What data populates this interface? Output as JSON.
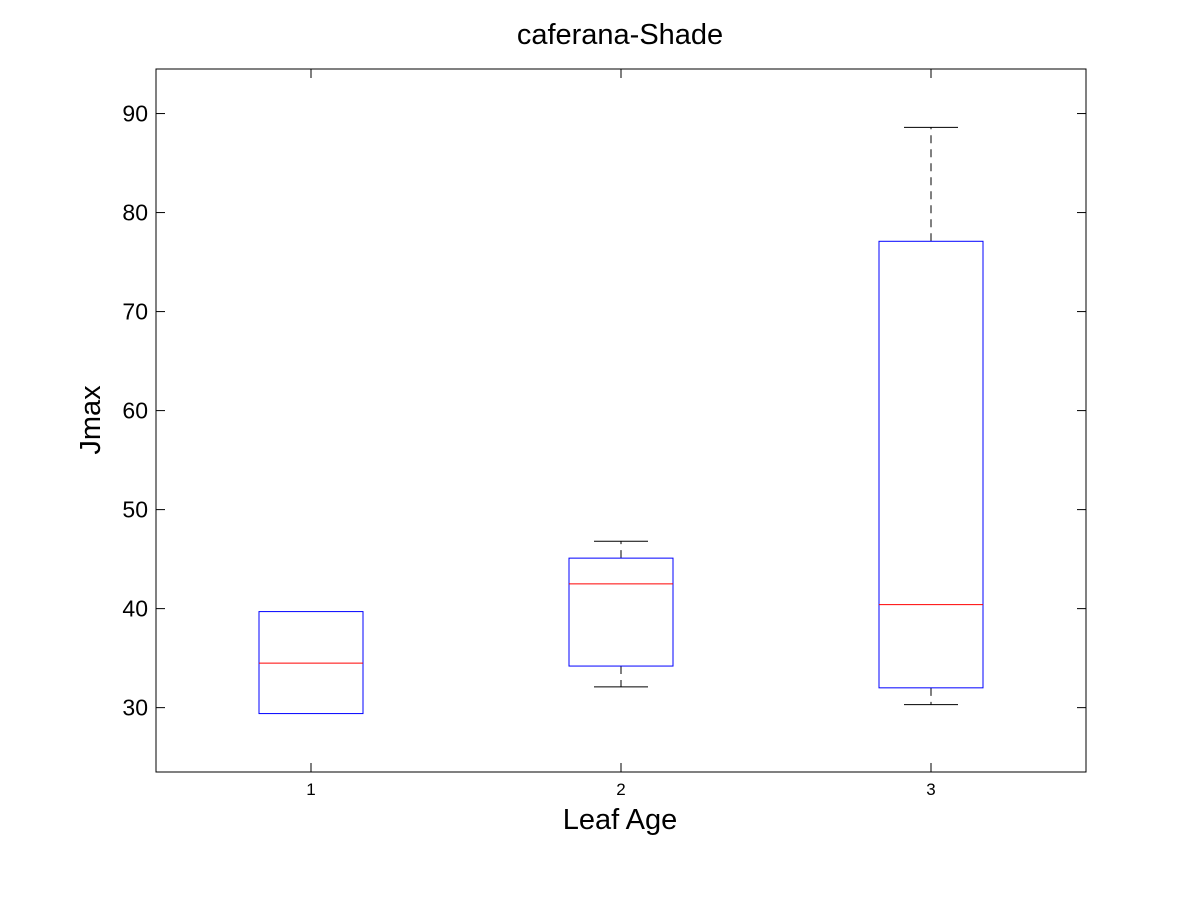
{
  "chart_data": {
    "type": "box",
    "title": "caferana-Shade",
    "xlabel": "Leaf Age",
    "ylabel": "Jmax",
    "ylim": [
      23.5,
      94.5
    ],
    "xlim": [
      0.5,
      3.5
    ],
    "yticks": [
      30,
      40,
      50,
      60,
      70,
      80,
      90
    ],
    "categories": [
      "1",
      "2",
      "3"
    ],
    "boxes": [
      {
        "category": "1",
        "min": 29.4,
        "q1": 29.4,
        "median": 34.5,
        "q3": 39.7,
        "max": 39.7
      },
      {
        "category": "2",
        "min": 32.1,
        "q1": 34.2,
        "median": 42.5,
        "q3": 45.1,
        "max": 46.8
      },
      {
        "category": "3",
        "min": 30.3,
        "q1": 32.0,
        "median": 40.4,
        "q3": 77.1,
        "max": 88.6
      }
    ],
    "grid": false,
    "colors": {
      "box": "#0000ff",
      "median": "#ff0000",
      "whisker": "#000000"
    }
  }
}
